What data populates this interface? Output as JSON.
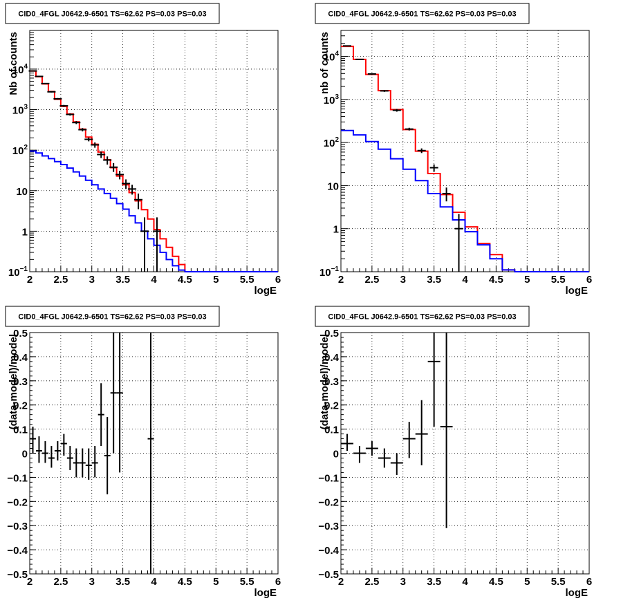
{
  "chart_data": [
    {
      "type": "line",
      "title": "CID0_4FGL J0642.9-6501 TS=62.62 PS=0.03 PS=0.03",
      "xlabel": "logE",
      "ylabel": "Nb of counts",
      "yscale": "log",
      "xlim": [
        2,
        6
      ],
      "ylim": [
        0.1,
        90000
      ],
      "grid": true,
      "xticks": [
        "2",
        "2.5",
        "3",
        "3.5",
        "4",
        "4.5",
        "5",
        "5.5",
        "6"
      ],
      "yticks": [
        {
          "value": 0.1,
          "base": "10",
          "exp": "−1"
        },
        {
          "value": 1,
          "label": "1"
        },
        {
          "value": 10,
          "label": "10"
        },
        {
          "value": 100,
          "base": "10",
          "exp": "2"
        },
        {
          "value": 1000,
          "base": "10",
          "exp": "3"
        },
        {
          "value": 10000,
          "base": "10",
          "exp": "4"
        }
      ],
      "bin_edges": [
        2.0,
        2.1,
        2.2,
        2.3,
        2.4,
        2.5,
        2.6,
        2.7,
        2.8,
        2.9,
        3.0,
        3.1,
        3.2,
        3.3,
        3.4,
        3.5,
        3.6,
        3.7,
        3.8,
        3.9,
        4.0,
        4.1,
        4.2,
        4.3,
        4.4,
        4.5,
        4.6,
        4.7,
        4.8,
        4.9,
        5.0,
        5.1,
        5.2,
        5.3,
        5.4,
        5.5,
        5.6,
        5.7,
        5.8,
        5.9,
        6.0
      ],
      "series": [
        {
          "color": "#ff0000",
          "drawing": "histogram",
          "values": [
            9000,
            6500,
            4300,
            2800,
            1800,
            1200,
            780,
            500,
            330,
            210,
            140,
            90,
            58,
            37,
            23,
            14,
            9.0,
            5.6,
            3.4,
            2.0,
            1.1,
            0.65,
            0.4,
            0.24,
            0.15,
            0.1,
            0.1,
            0.1,
            0.1,
            0.1,
            0.1,
            0.1,
            0.1,
            0.1,
            0.1,
            0.1,
            0.1,
            0.1,
            0.1,
            0.1
          ]
        },
        {
          "color": "#0000ff",
          "drawing": "histogram",
          "values": [
            95,
            85,
            72,
            62,
            52,
            44,
            36,
            29,
            23,
            18,
            14,
            11,
            8.5,
            6.5,
            4.8,
            3.5,
            2.4,
            1.6,
            1.0,
            0.65,
            0.45,
            0.3,
            0.2,
            0.14,
            0.11,
            0.1,
            0.1,
            0.1,
            0.1,
            0.1,
            0.1,
            0.1,
            0.1,
            0.1,
            0.1,
            0.1,
            0.1,
            0.1,
            0.1,
            0.1
          ]
        },
        {
          "color": "#000000",
          "drawing": "errorbars",
          "points": [
            {
              "x": 2.05,
              "y": 9000,
              "ylo": 8800,
              "yhi": 9200
            },
            {
              "x": 2.15,
              "y": 6600,
              "ylo": 6400,
              "yhi": 6800
            },
            {
              "x": 2.25,
              "y": 4400,
              "ylo": 4250,
              "yhi": 4550
            },
            {
              "x": 2.35,
              "y": 2750,
              "ylo": 2650,
              "yhi": 2850
            },
            {
              "x": 2.45,
              "y": 1850,
              "ylo": 1770,
              "yhi": 1930
            },
            {
              "x": 2.55,
              "y": 1240,
              "ylo": 1170,
              "yhi": 1310
            },
            {
              "x": 2.65,
              "y": 760,
              "ylo": 710,
              "yhi": 810
            },
            {
              "x": 2.75,
              "y": 480,
              "ylo": 440,
              "yhi": 520
            },
            {
              "x": 2.85,
              "y": 320,
              "ylo": 290,
              "yhi": 350
            },
            {
              "x": 2.95,
              "y": 185,
              "ylo": 165,
              "yhi": 205
            },
            {
              "x": 3.05,
              "y": 135,
              "ylo": 115,
              "yhi": 155
            },
            {
              "x": 3.15,
              "y": 78,
              "ylo": 64,
              "yhi": 92
            },
            {
              "x": 3.25,
              "y": 57,
              "ylo": 44,
              "yhi": 70
            },
            {
              "x": 3.35,
              "y": 38,
              "ylo": 29,
              "yhi": 48
            },
            {
              "x": 3.45,
              "y": 25,
              "ylo": 19,
              "yhi": 31
            },
            {
              "x": 3.55,
              "y": 15,
              "ylo": 11,
              "yhi": 19
            },
            {
              "x": 3.65,
              "y": 11,
              "ylo": 8,
              "yhi": 14
            },
            {
              "x": 3.75,
              "y": 6,
              "ylo": 3.5,
              "yhi": 8.5
            },
            {
              "x": 3.85,
              "y": 1,
              "ylo": 0.1,
              "yhi": 2.2
            },
            {
              "x": 4.05,
              "y": 1,
              "ylo": 0.1,
              "yhi": 2.2
            }
          ]
        }
      ]
    },
    {
      "type": "line",
      "title": "CID0_4FGL J0642.9-6501 TS=62.62 PS=0.03 PS=0.03",
      "xlabel": "logE",
      "ylabel": "nb of counts",
      "yscale": "log",
      "xlim": [
        2,
        6
      ],
      "ylim": [
        0.1,
        40000
      ],
      "grid": true,
      "xticks": [
        "2",
        "2.5",
        "3",
        "3.5",
        "4",
        "4.5",
        "5",
        "5.5",
        "6"
      ],
      "yticks": [
        {
          "value": 0.1,
          "base": "10",
          "exp": "−1"
        },
        {
          "value": 1,
          "label": "1"
        },
        {
          "value": 10,
          "label": "10"
        },
        {
          "value": 100,
          "base": "10",
          "exp": "2"
        },
        {
          "value": 1000,
          "base": "10",
          "exp": "3"
        },
        {
          "value": 10000,
          "base": "10",
          "exp": "4"
        }
      ],
      "bin_edges": [
        2.0,
        2.2,
        2.4,
        2.6,
        2.8,
        3.0,
        3.2,
        3.4,
        3.6,
        3.8,
        4.0,
        4.2,
        4.4,
        4.6,
        4.8,
        5.0,
        5.2,
        5.4,
        5.6,
        5.8,
        6.0
      ],
      "series": [
        {
          "color": "#ff0000",
          "drawing": "histogram",
          "values": [
            17000,
            8500,
            3800,
            1600,
            580,
            200,
            63,
            19,
            6.2,
            2.4,
            1.1,
            0.45,
            0.25,
            0.11,
            0.1,
            0.1,
            0.1,
            0.1,
            0.1,
            0.1
          ]
        },
        {
          "color": "#0000ff",
          "drawing": "histogram",
          "values": [
            190,
            150,
            105,
            70,
            42,
            24,
            13,
            6.5,
            3.2,
            1.6,
            0.85,
            0.42,
            0.2,
            0.11,
            0.1,
            0.1,
            0.1,
            0.1,
            0.1,
            0.1
          ]
        },
        {
          "color": "#000000",
          "drawing": "errorbars",
          "points": [
            {
              "x": 2.1,
              "y": 17500,
              "ylo": 17200,
              "yhi": 17800
            },
            {
              "x": 2.3,
              "y": 8500,
              "ylo": 8300,
              "yhi": 8700
            },
            {
              "x": 2.5,
              "y": 3900,
              "ylo": 3750,
              "yhi": 4050
            },
            {
              "x": 2.7,
              "y": 1580,
              "ylo": 1500,
              "yhi": 1660
            },
            {
              "x": 2.9,
              "y": 560,
              "ylo": 520,
              "yhi": 600
            },
            {
              "x": 3.1,
              "y": 205,
              "ylo": 190,
              "yhi": 220
            },
            {
              "x": 3.3,
              "y": 65,
              "ylo": 57,
              "yhi": 73
            },
            {
              "x": 3.5,
              "y": 26,
              "ylo": 21,
              "yhi": 31
            },
            {
              "x": 3.7,
              "y": 6.5,
              "ylo": 4.3,
              "yhi": 9.0
            },
            {
              "x": 3.9,
              "y": 1,
              "ylo": 0.1,
              "yhi": 2.2
            }
          ]
        }
      ]
    },
    {
      "type": "scatter",
      "title": "CID0_4FGL J0642.9-6501 TS=62.62 PS=0.03 PS=0.03",
      "xlabel": "logE",
      "ylabel": "(data-model)/model",
      "xlim": [
        2,
        6
      ],
      "ylim": [
        -0.5,
        0.5
      ],
      "grid": true,
      "xticks": [
        "2",
        "2.5",
        "3",
        "3.5",
        "4",
        "4.5",
        "5",
        "5.5",
        "6"
      ],
      "yticks": [
        "−0.5",
        "−0.4",
        "−0.3",
        "−0.2",
        "−0.1",
        "0",
        "0.1",
        "0.2",
        "0.3",
        "0.4",
        "0.5"
      ],
      "points": [
        {
          "x": 2.05,
          "y": 0.06,
          "ylo": 0.0,
          "yhi": 0.11,
          "xerr": 0.05
        },
        {
          "x": 2.15,
          "y": 0.01,
          "ylo": -0.04,
          "yhi": 0.07,
          "xerr": 0.05
        },
        {
          "x": 2.25,
          "y": 0.0,
          "ylo": -0.04,
          "yhi": 0.05,
          "xerr": 0.05
        },
        {
          "x": 2.35,
          "y": -0.02,
          "ylo": -0.06,
          "yhi": 0.03,
          "xerr": 0.05
        },
        {
          "x": 2.45,
          "y": 0.01,
          "ylo": -0.03,
          "yhi": 0.05,
          "xerr": 0.05
        },
        {
          "x": 2.55,
          "y": 0.04,
          "ylo": -0.01,
          "yhi": 0.08,
          "xerr": 0.05
        },
        {
          "x": 2.65,
          "y": -0.02,
          "ylo": -0.07,
          "yhi": 0.03,
          "xerr": 0.05
        },
        {
          "x": 2.75,
          "y": -0.04,
          "ylo": -0.1,
          "yhi": 0.02,
          "xerr": 0.05
        },
        {
          "x": 2.85,
          "y": -0.04,
          "ylo": -0.1,
          "yhi": 0.02,
          "xerr": 0.05
        },
        {
          "x": 2.95,
          "y": -0.05,
          "ylo": -0.11,
          "yhi": 0.02,
          "xerr": 0.05
        },
        {
          "x": 3.05,
          "y": -0.04,
          "ylo": -0.1,
          "yhi": 0.03,
          "xerr": 0.05
        },
        {
          "x": 3.15,
          "y": 0.16,
          "ylo": 0.03,
          "yhi": 0.29,
          "xerr": 0.05
        },
        {
          "x": 3.25,
          "y": -0.01,
          "ylo": -0.17,
          "yhi": 0.15,
          "xerr": 0.05
        },
        {
          "x": 3.35,
          "y": 0.25,
          "ylo": 0.0,
          "yhi": 0.5,
          "xerr": 0.05
        },
        {
          "x": 3.45,
          "y": 0.25,
          "ylo": -0.08,
          "yhi": 0.5,
          "xerr": 0.05
        },
        {
          "x": 3.95,
          "y": 0.06,
          "ylo": -0.5,
          "yhi": 0.5,
          "xerr": 0.05
        }
      ]
    },
    {
      "type": "scatter",
      "title": "CID0_4FGL J0642.9-6501 TS=62.62 PS=0.03 PS=0.03",
      "xlabel": "logE",
      "ylabel": "(data-model)/model",
      "xlim": [
        2,
        6
      ],
      "ylim": [
        -0.5,
        0.5
      ],
      "grid": true,
      "xticks": [
        "2",
        "2.5",
        "3",
        "3.5",
        "4",
        "4.5",
        "5",
        "5.5",
        "6"
      ],
      "yticks": [
        "−0.5",
        "−0.4",
        "−0.3",
        "−0.2",
        "−0.1",
        "0",
        "0.1",
        "0.2",
        "0.3",
        "0.4",
        "0.5"
      ],
      "points": [
        {
          "x": 2.1,
          "y": 0.04,
          "ylo": 0.01,
          "yhi": 0.08,
          "xerr": 0.1
        },
        {
          "x": 2.3,
          "y": 0.0,
          "ylo": -0.04,
          "yhi": 0.03,
          "xerr": 0.1
        },
        {
          "x": 2.5,
          "y": 0.02,
          "ylo": -0.01,
          "yhi": 0.05,
          "xerr": 0.1
        },
        {
          "x": 2.7,
          "y": -0.02,
          "ylo": -0.06,
          "yhi": 0.02,
          "xerr": 0.1
        },
        {
          "x": 2.9,
          "y": -0.04,
          "ylo": -0.09,
          "yhi": 0.0,
          "xerr": 0.1
        },
        {
          "x": 3.1,
          "y": 0.06,
          "ylo": -0.02,
          "yhi": 0.13,
          "xerr": 0.1
        },
        {
          "x": 3.3,
          "y": 0.08,
          "ylo": -0.05,
          "yhi": 0.22,
          "xerr": 0.1
        },
        {
          "x": 3.5,
          "y": 0.38,
          "ylo": 0.11,
          "yhi": 0.5,
          "xerr": 0.1
        },
        {
          "x": 3.7,
          "y": 0.11,
          "ylo": -0.31,
          "yhi": 0.5,
          "xerr": 0.1
        }
      ]
    }
  ]
}
